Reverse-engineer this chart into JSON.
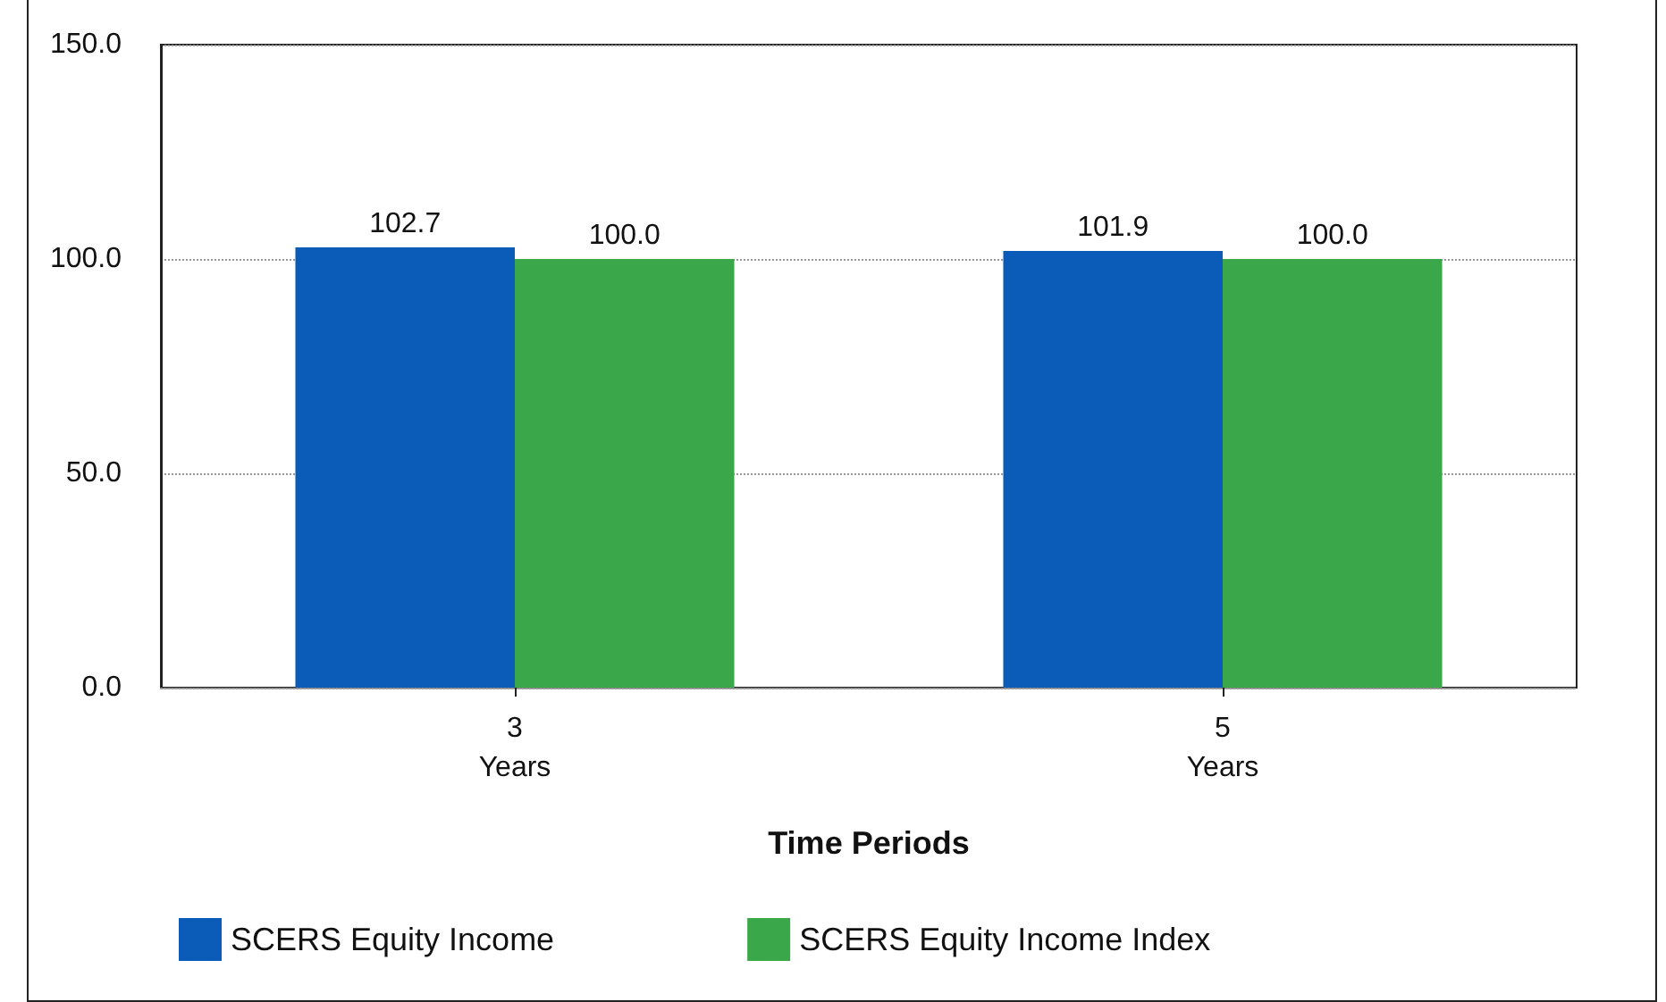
{
  "chart_data": {
    "type": "bar",
    "xlabel": "Time Periods",
    "categories": [
      "3\nYears",
      "5\nYears"
    ],
    "series": [
      {
        "name": "SCERS Equity Income",
        "color": "#0a5cb8",
        "values": [
          102.7,
          101.9
        ],
        "value_labels": [
          "102.7",
          "101.9"
        ]
      },
      {
        "name": "SCERS Equity Income Index",
        "color": "#3aa84a",
        "values": [
          100.0,
          100.0
        ],
        "value_labels": [
          "100.0",
          "100.0"
        ]
      }
    ],
    "ylim": [
      0,
      150
    ],
    "yticks": [
      {
        "value": 0,
        "label": "0.0"
      },
      {
        "value": 50,
        "label": "50.0"
      },
      {
        "value": 100,
        "label": "100.0"
      },
      {
        "value": 150,
        "label": "150.0"
      }
    ],
    "grid": "y",
    "legend": "bottom"
  }
}
